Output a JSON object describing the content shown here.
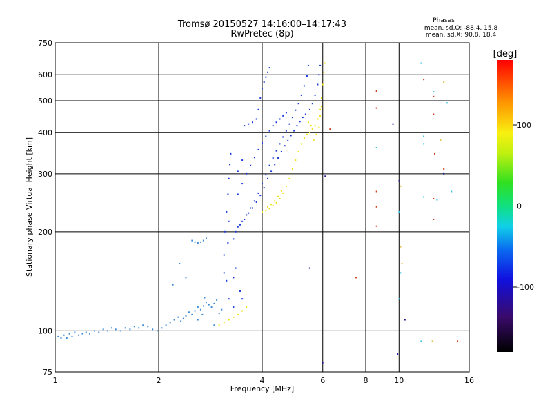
{
  "chart_data": {
    "type": "scatter",
    "title": "Tromsø 20150527 14:16:00–14:17:43",
    "subtitle": "RwPretec (8p)",
    "xlabel": "Frequency [MHz]",
    "ylabel": "Stationary phase Virtual Height [km]",
    "x_scale": "log",
    "y_scale": "log",
    "xlim": [
      1,
      16
    ],
    "ylim": [
      75,
      750
    ],
    "x_ticks": [
      1,
      2,
      4,
      6,
      8,
      10,
      16
    ],
    "y_ticks": [
      75,
      100,
      200,
      300,
      400,
      500,
      600,
      750
    ],
    "grid": true,
    "stats": {
      "heading": "Phases",
      "line_o": "mean, sd,O: -88.4, 15.8",
      "line_x": "mean, sd,X: 90.8, 18.4"
    },
    "colorbar": {
      "label": "[deg]",
      "range": [
        -180,
        180
      ],
      "ticks": [
        100,
        0,
        -100
      ]
    },
    "series": [
      {
        "color": "#3a8ad8",
        "phase_deg": -100,
        "points": [
          [
            1.02,
            96
          ],
          [
            1.04,
            95
          ],
          [
            1.06,
            97
          ],
          [
            1.08,
            95
          ],
          [
            1.1,
            98
          ],
          [
            1.12,
            96
          ],
          [
            1.14,
            99
          ],
          [
            1.17,
            97
          ],
          [
            1.2,
            98
          ],
          [
            1.23,
            99
          ],
          [
            1.26,
            98
          ],
          [
            1.3,
            100
          ],
          [
            1.34,
            99
          ],
          [
            1.38,
            101
          ],
          [
            1.42,
            100
          ],
          [
            1.46,
            102
          ],
          [
            1.5,
            101
          ],
          [
            1.55,
            100
          ],
          [
            1.6,
            102
          ],
          [
            1.65,
            101
          ],
          [
            1.7,
            103
          ],
          [
            1.75,
            102
          ],
          [
            1.8,
            104
          ],
          [
            1.86,
            103
          ],
          [
            1.92,
            101
          ],
          [
            1.98,
            100
          ],
          [
            2.04,
            102
          ],
          [
            2.1,
            104
          ],
          [
            2.16,
            106
          ],
          [
            2.22,
            108
          ],
          [
            2.28,
            110
          ],
          [
            2.32,
            107
          ],
          [
            2.36,
            109
          ],
          [
            2.4,
            111
          ],
          [
            2.45,
            114
          ],
          [
            2.5,
            112
          ],
          [
            2.55,
            115
          ],
          [
            2.6,
            118
          ],
          [
            2.65,
            116
          ],
          [
            2.7,
            119
          ],
          [
            2.75,
            122
          ],
          [
            2.8,
            120
          ],
          [
            2.85,
            118
          ],
          [
            2.9,
            121
          ],
          [
            2.95,
            124
          ],
          [
            2.5,
            188
          ],
          [
            2.55,
            186
          ],
          [
            2.6,
            185
          ],
          [
            2.65,
            186
          ],
          [
            2.7,
            188
          ],
          [
            2.75,
            191
          ],
          [
            2.3,
            160
          ],
          [
            2.4,
            145
          ],
          [
            2.2,
            138
          ],
          [
            2.68,
            112
          ],
          [
            2.72,
            126
          ],
          [
            2.6,
            108
          ],
          [
            2.9,
            104
          ],
          [
            3.0,
            113
          ],
          [
            3.05,
            116
          ]
        ]
      },
      {
        "color": "#1a3ad8",
        "phase_deg": -110,
        "points": [
          [
            3.1,
            170
          ],
          [
            3.12,
            200
          ],
          [
            3.15,
            230
          ],
          [
            3.18,
            260
          ],
          [
            3.2,
            290
          ],
          [
            3.22,
            320
          ],
          [
            3.24,
            345
          ],
          [
            3.1,
            150
          ],
          [
            3.15,
            142
          ],
          [
            3.18,
            185
          ],
          [
            3.2,
            215
          ],
          [
            3.3,
            190
          ],
          [
            3.35,
            200
          ],
          [
            3.4,
            207
          ],
          [
            3.5,
            215
          ],
          [
            3.6,
            225
          ],
          [
            3.7,
            236
          ],
          [
            3.8,
            248
          ],
          [
            3.9,
            262
          ],
          [
            4.0,
            280
          ],
          [
            4.1,
            298
          ],
          [
            4.2,
            318
          ],
          [
            4.3,
            335
          ],
          [
            4.4,
            352
          ],
          [
            4.5,
            370
          ],
          [
            4.6,
            388
          ],
          [
            4.7,
            405
          ],
          [
            4.8,
            425
          ],
          [
            4.9,
            445
          ],
          [
            5.0,
            468
          ],
          [
            5.1,
            490
          ],
          [
            5.2,
            520
          ],
          [
            5.3,
            555
          ],
          [
            5.4,
            595
          ],
          [
            5.45,
            640
          ],
          [
            3.4,
            260
          ],
          [
            3.5,
            280
          ],
          [
            3.6,
            300
          ],
          [
            3.7,
            318
          ],
          [
            3.8,
            336
          ],
          [
            3.9,
            355
          ],
          [
            4.0,
            372
          ],
          [
            4.1,
            390
          ],
          [
            4.2,
            405
          ],
          [
            4.3,
            420
          ],
          [
            4.4,
            430
          ],
          [
            4.5,
            440
          ],
          [
            4.6,
            450
          ],
          [
            4.7,
            460
          ],
          [
            3.45,
            210
          ],
          [
            3.55,
            218
          ],
          [
            3.65,
            228
          ],
          [
            3.75,
            236
          ],
          [
            3.85,
            246
          ],
          [
            3.95,
            258
          ],
          [
            4.05,
            272
          ],
          [
            4.15,
            290
          ],
          [
            4.25,
            305
          ],
          [
            4.35,
            320
          ],
          [
            4.45,
            335
          ],
          [
            4.55,
            350
          ],
          [
            4.65,
            365
          ],
          [
            4.75,
            378
          ],
          [
            4.85,
            392
          ],
          [
            4.95,
            405
          ],
          [
            5.05,
            420
          ],
          [
            5.15,
            432
          ],
          [
            5.25,
            445
          ],
          [
            5.35,
            455
          ],
          [
            5.5,
            470
          ],
          [
            5.6,
            490
          ],
          [
            5.7,
            520
          ],
          [
            5.8,
            560
          ],
          [
            5.85,
            600
          ],
          [
            5.9,
            640
          ],
          [
            3.55,
            420
          ],
          [
            3.65,
            425
          ],
          [
            3.75,
            430
          ],
          [
            3.85,
            440
          ],
          [
            3.9,
            470
          ],
          [
            3.95,
            510
          ],
          [
            4.0,
            545
          ],
          [
            4.05,
            570
          ],
          [
            4.1,
            590
          ],
          [
            4.15,
            610
          ],
          [
            4.2,
            630
          ],
          [
            3.3,
            145
          ],
          [
            3.35,
            155
          ],
          [
            3.45,
            132
          ],
          [
            3.2,
            125
          ],
          [
            3.3,
            118
          ],
          [
            3.5,
            125
          ],
          [
            3.4,
            305
          ],
          [
            3.5,
            330
          ]
        ]
      },
      {
        "color": "#f0e010",
        "phase_deg": 100,
        "points": [
          [
            4.0,
            230
          ],
          [
            4.1,
            232
          ],
          [
            4.2,
            235
          ],
          [
            4.3,
            240
          ],
          [
            4.4,
            245
          ],
          [
            4.5,
            252
          ],
          [
            4.6,
            262
          ],
          [
            4.7,
            275
          ],
          [
            4.8,
            290
          ],
          [
            4.9,
            310
          ],
          [
            5.0,
            330
          ],
          [
            5.1,
            350
          ],
          [
            5.2,
            370
          ],
          [
            5.3,
            385
          ],
          [
            5.4,
            395
          ],
          [
            5.5,
            400
          ],
          [
            5.6,
            410
          ],
          [
            5.7,
            420
          ],
          [
            5.8,
            440
          ],
          [
            5.9,
            470
          ],
          [
            5.95,
            510
          ],
          [
            6.0,
            560
          ],
          [
            6.05,
            610
          ],
          [
            6.08,
            650
          ],
          [
            5.65,
            380
          ],
          [
            5.75,
            395
          ],
          [
            5.85,
            415
          ],
          [
            5.9,
            450
          ],
          [
            5.95,
            480
          ],
          [
            5.45,
            430
          ],
          [
            5.55,
            420
          ],
          [
            3.0,
            104
          ],
          [
            3.1,
            106
          ],
          [
            3.2,
            108
          ],
          [
            3.3,
            110
          ],
          [
            3.4,
            112
          ],
          [
            3.5,
            115
          ],
          [
            3.6,
            118
          ],
          [
            4.15,
            238
          ],
          [
            4.25,
            242
          ],
          [
            4.35,
            248
          ],
          [
            4.45,
            256
          ],
          [
            4.55,
            266
          ]
        ]
      },
      {
        "color": "#d04020",
        "phase_deg": 150,
        "points": [
          [
            8.6,
            535
          ],
          [
            8.6,
            475
          ],
          [
            8.6,
            265
          ],
          [
            8.6,
            238
          ],
          [
            8.6,
            208
          ],
          [
            12.6,
            515
          ],
          [
            12.6,
            455
          ],
          [
            12.7,
            345
          ],
          [
            12.6,
            252
          ],
          [
            12.6,
            218
          ],
          [
            13.5,
            310
          ],
          [
            14.8,
            93
          ],
          [
            7.5,
            145
          ],
          [
            6.3,
            410
          ],
          [
            11.8,
            580
          ]
        ]
      },
      {
        "color": "#30c0e0",
        "phase_deg": -60,
        "points": [
          [
            11.6,
            650
          ],
          [
            12.6,
            532
          ],
          [
            13.8,
            492
          ],
          [
            11.8,
            390
          ],
          [
            11.8,
            370
          ],
          [
            11.8,
            255
          ],
          [
            12.9,
            250
          ],
          [
            14.2,
            265
          ],
          [
            11.6,
            93
          ],
          [
            10.0,
            230
          ],
          [
            10.1,
            150
          ],
          [
            10.0,
            125
          ],
          [
            8.6,
            360
          ]
        ]
      },
      {
        "color": "#e0c040",
        "phase_deg": 90,
        "points": [
          [
            10.1,
            275
          ],
          [
            10.1,
            180
          ],
          [
            10.2,
            160
          ],
          [
            13.5,
            570
          ],
          [
            12.5,
            93
          ],
          [
            13.2,
            380
          ]
        ]
      },
      {
        "color": "#20109a",
        "phase_deg": -150,
        "points": [
          [
            9.6,
            425
          ],
          [
            10.4,
            108
          ],
          [
            6.1,
            295
          ],
          [
            6.0,
            80
          ],
          [
            5.5,
            155
          ],
          [
            9.9,
            85
          ],
          [
            13.5,
            300
          ],
          [
            10.0,
            285
          ]
        ]
      }
    ]
  }
}
